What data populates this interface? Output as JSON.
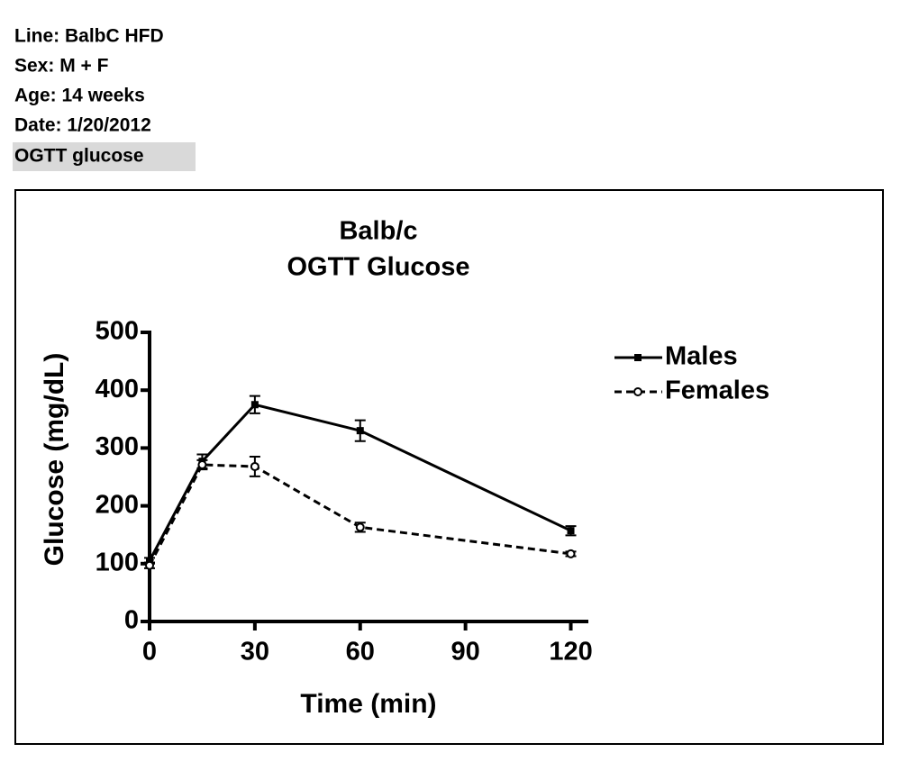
{
  "header": {
    "lines": [
      "Line: BalbC HFD",
      "Sex: M + F",
      "Age: 14 weeks",
      "Date: 1/20/2012"
    ],
    "highlighted": "OGTT glucose"
  },
  "chart_data": {
    "type": "line",
    "title": [
      "Balb/c",
      "OGTT Glucose"
    ],
    "x_label": "Time (min)",
    "y_label": "Glucose (mg/dL)",
    "x": [
      0,
      15,
      30,
      60,
      120
    ],
    "series": [
      {
        "name": "Males",
        "color": "#000000",
        "dash": "solid",
        "marker": "square",
        "values": [
          105,
          277,
          375,
          330,
          157
        ],
        "errors": [
          5,
          12,
          15,
          18,
          8
        ]
      },
      {
        "name": "Females",
        "color": "#000000",
        "dash": "dashed",
        "marker": "circle",
        "values": [
          97,
          271,
          268,
          163,
          117
        ],
        "errors": [
          5,
          8,
          17,
          8,
          4
        ]
      }
    ],
    "xlim": [
      0,
      125
    ],
    "ylim": [
      0,
      500
    ],
    "xticks": [
      0,
      30,
      60,
      90,
      120
    ],
    "yticks": [
      0,
      100,
      200,
      300,
      400,
      500
    ],
    "grid": false,
    "legend": "right"
  }
}
